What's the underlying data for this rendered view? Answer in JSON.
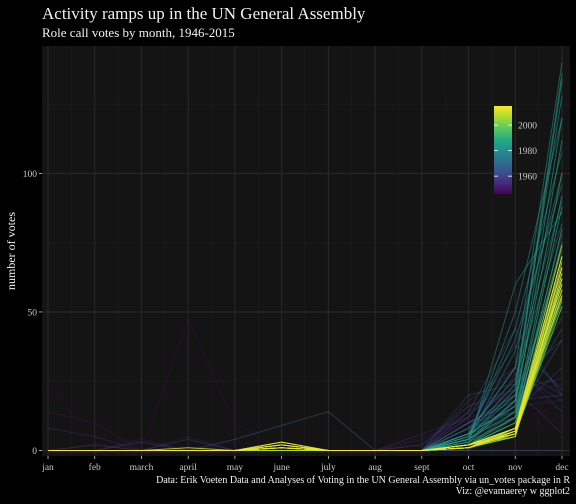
{
  "chart_data": {
    "type": "line",
    "title": "Activity ramps up in the UN General Assembly",
    "subtitle": "Role call votes by month, 1946-2015",
    "xlabel": "",
    "ylabel": "number of votes",
    "categories": [
      "jan",
      "feb",
      "march",
      "april",
      "may",
      "june",
      "july",
      "aug",
      "sept",
      "oct",
      "nov",
      "dec"
    ],
    "yticks": [
      0,
      50,
      100
    ],
    "ylim": [
      -2,
      146
    ],
    "grid": true,
    "legend": {
      "type": "colorbar",
      "position": "top-right",
      "palette": "viridis",
      "range": [
        1946,
        2015
      ],
      "ticks": [
        1960,
        1980,
        2000
      ]
    },
    "series": [
      {
        "year": 1946,
        "values": [
          24,
          3,
          0,
          0,
          0,
          0,
          0,
          0,
          0,
          6,
          10,
          8
        ]
      },
      {
        "year": 1947,
        "values": [
          0,
          0,
          0,
          0,
          3,
          0,
          0,
          0,
          0,
          8,
          22,
          6
        ]
      },
      {
        "year": 1948,
        "values": [
          0,
          0,
          0,
          0,
          0,
          0,
          0,
          0,
          5,
          10,
          18,
          12
        ]
      },
      {
        "year": 1949,
        "values": [
          0,
          0,
          0,
          47,
          10,
          0,
          0,
          0,
          0,
          14,
          20,
          9
        ]
      },
      {
        "year": 1950,
        "values": [
          0,
          0,
          0,
          0,
          0,
          0,
          0,
          0,
          0,
          10,
          25,
          14
        ]
      },
      {
        "year": 1951,
        "values": [
          14,
          10,
          0,
          0,
          0,
          0,
          0,
          0,
          0,
          0,
          18,
          20
        ]
      },
      {
        "year": 1952,
        "values": [
          0,
          0,
          4,
          0,
          0,
          0,
          0,
          0,
          0,
          16,
          20,
          24
        ]
      },
      {
        "year": 1953,
        "values": [
          0,
          2,
          0,
          5,
          0,
          0,
          0,
          0,
          4,
          12,
          16,
          18
        ]
      },
      {
        "year": 1954,
        "values": [
          0,
          0,
          0,
          0,
          0,
          0,
          0,
          0,
          2,
          14,
          22,
          6
        ]
      },
      {
        "year": 1955,
        "values": [
          0,
          0,
          0,
          0,
          0,
          0,
          0,
          0,
          0,
          10,
          18,
          20
        ]
      },
      {
        "year": 1956,
        "values": [
          8,
          5,
          0,
          0,
          0,
          0,
          0,
          0,
          0,
          0,
          28,
          18
        ]
      },
      {
        "year": 1957,
        "values": [
          0,
          2,
          0,
          0,
          0,
          0,
          0,
          0,
          6,
          12,
          30,
          14
        ]
      },
      {
        "year": 1958,
        "values": [
          0,
          0,
          0,
          0,
          0,
          0,
          0,
          0,
          2,
          16,
          22,
          26
        ]
      },
      {
        "year": 1959,
        "values": [
          0,
          0,
          0,
          0,
          0,
          0,
          0,
          0,
          0,
          18,
          30,
          20
        ]
      },
      {
        "year": 1960,
        "values": [
          0,
          0,
          0,
          4,
          0,
          0,
          0,
          0,
          0,
          10,
          14,
          30
        ]
      },
      {
        "year": 1961,
        "values": [
          0,
          0,
          3,
          0,
          0,
          0,
          0,
          0,
          0,
          20,
          24,
          40
        ]
      },
      {
        "year": 1962,
        "values": [
          0,
          0,
          0,
          0,
          0,
          2,
          0,
          0,
          0,
          12,
          38,
          22
        ]
      },
      {
        "year": 1963,
        "values": [
          0,
          0,
          0,
          0,
          0,
          0,
          0,
          0,
          0,
          14,
          44,
          20
        ]
      },
      {
        "year": 1964,
        "values": [
          0,
          0,
          0,
          0,
          0,
          0,
          0,
          0,
          0,
          0,
          0,
          0
        ]
      },
      {
        "year": 1965,
        "values": [
          0,
          0,
          0,
          0,
          0,
          0,
          0,
          0,
          0,
          8,
          20,
          52
        ]
      },
      {
        "year": 1966,
        "values": [
          0,
          0,
          0,
          0,
          0,
          0,
          0,
          0,
          0,
          10,
          18,
          48
        ]
      },
      {
        "year": 1967,
        "values": [
          0,
          0,
          0,
          0,
          4,
          9,
          14,
          0,
          0,
          0,
          12,
          40
        ]
      },
      {
        "year": 1968,
        "values": [
          0,
          0,
          0,
          0,
          0,
          0,
          0,
          0,
          0,
          6,
          16,
          44
        ]
      },
      {
        "year": 1969,
        "values": [
          0,
          0,
          0,
          0,
          0,
          0,
          0,
          0,
          0,
          8,
          14,
          56
        ]
      },
      {
        "year": 1970,
        "values": [
          0,
          0,
          0,
          0,
          0,
          0,
          0,
          0,
          0,
          6,
          12,
          60
        ]
      },
      {
        "year": 1971,
        "values": [
          0,
          0,
          0,
          0,
          0,
          0,
          0,
          0,
          0,
          10,
          20,
          66
        ]
      },
      {
        "year": 1972,
        "values": [
          0,
          0,
          0,
          0,
          0,
          0,
          0,
          0,
          0,
          4,
          16,
          72
        ]
      },
      {
        "year": 1973,
        "values": [
          0,
          0,
          0,
          0,
          0,
          0,
          0,
          0,
          0,
          2,
          14,
          78
        ]
      },
      {
        "year": 1974,
        "values": [
          0,
          0,
          0,
          0,
          0,
          0,
          0,
          0,
          0,
          8,
          26,
          82
        ]
      },
      {
        "year": 1975,
        "values": [
          0,
          0,
          0,
          0,
          0,
          0,
          0,
          0,
          0,
          6,
          30,
          90
        ]
      },
      {
        "year": 1976,
        "values": [
          0,
          0,
          0,
          0,
          0,
          0,
          0,
          0,
          0,
          4,
          36,
          100
        ]
      },
      {
        "year": 1977,
        "values": [
          0,
          0,
          0,
          0,
          0,
          0,
          0,
          0,
          0,
          6,
          40,
          96
        ]
      },
      {
        "year": 1978,
        "values": [
          0,
          0,
          0,
          0,
          0,
          0,
          0,
          0,
          0,
          5,
          44,
          108
        ]
      },
      {
        "year": 1979,
        "values": [
          0,
          0,
          0,
          0,
          0,
          0,
          0,
          0,
          0,
          2,
          60,
          86
        ]
      },
      {
        "year": 1980,
        "values": [
          0,
          0,
          0,
          0,
          0,
          0,
          0,
          0,
          0,
          4,
          50,
          120
        ]
      },
      {
        "year": 1981,
        "values": [
          0,
          0,
          0,
          0,
          0,
          0,
          0,
          0,
          0,
          6,
          30,
          140
        ]
      },
      {
        "year": 1982,
        "values": [
          0,
          0,
          0,
          0,
          0,
          0,
          0,
          0,
          0,
          5,
          20,
          134
        ]
      },
      {
        "year": 1983,
        "values": [
          0,
          0,
          0,
          0,
          0,
          0,
          0,
          0,
          0,
          6,
          24,
          128
        ]
      },
      {
        "year": 1984,
        "values": [
          0,
          0,
          0,
          0,
          0,
          0,
          0,
          0,
          0,
          5,
          22,
          136
        ]
      },
      {
        "year": 1985,
        "values": [
          0,
          0,
          0,
          0,
          0,
          0,
          0,
          0,
          0,
          4,
          18,
          120
        ]
      },
      {
        "year": 1986,
        "values": [
          0,
          0,
          0,
          0,
          0,
          0,
          0,
          0,
          0,
          6,
          16,
          112
        ]
      },
      {
        "year": 1987,
        "values": [
          0,
          0,
          0,
          0,
          0,
          0,
          0,
          0,
          0,
          3,
          18,
          100
        ]
      },
      {
        "year": 1988,
        "values": [
          0,
          0,
          0,
          0,
          0,
          0,
          0,
          0,
          0,
          4,
          14,
          92
        ]
      },
      {
        "year": 1989,
        "values": [
          0,
          0,
          0,
          0,
          0,
          0,
          0,
          0,
          0,
          3,
          12,
          88
        ]
      },
      {
        "year": 1990,
        "values": [
          0,
          0,
          0,
          0,
          0,
          0,
          0,
          0,
          0,
          2,
          10,
          80
        ]
      },
      {
        "year": 1991,
        "values": [
          0,
          0,
          0,
          0,
          0,
          0,
          0,
          0,
          0,
          2,
          12,
          75
        ]
      },
      {
        "year": 1992,
        "values": [
          0,
          0,
          0,
          0,
          0,
          0,
          0,
          0,
          0,
          1,
          8,
          70
        ]
      },
      {
        "year": 1993,
        "values": [
          0,
          0,
          0,
          0,
          0,
          0,
          0,
          0,
          0,
          2,
          10,
          66
        ]
      },
      {
        "year": 1994,
        "values": [
          0,
          0,
          0,
          0,
          0,
          0,
          0,
          0,
          0,
          1,
          6,
          60
        ]
      },
      {
        "year": 1995,
        "values": [
          0,
          0,
          0,
          0,
          0,
          0,
          0,
          0,
          0,
          2,
          8,
          62
        ]
      },
      {
        "year": 1996,
        "values": [
          0,
          0,
          0,
          0,
          0,
          0,
          0,
          0,
          0,
          1,
          6,
          58
        ]
      },
      {
        "year": 1997,
        "values": [
          0,
          0,
          0,
          0,
          0,
          1,
          0,
          0,
          0,
          2,
          7,
          56
        ]
      },
      {
        "year": 1998,
        "values": [
          0,
          0,
          0,
          0,
          0,
          2,
          0,
          0,
          0,
          1,
          6,
          54
        ]
      },
      {
        "year": 1999,
        "values": [
          0,
          0,
          0,
          0,
          0,
          0,
          0,
          0,
          0,
          2,
          8,
          60
        ]
      },
      {
        "year": 2000,
        "values": [
          0,
          0,
          0,
          0,
          0,
          0,
          0,
          0,
          0,
          1,
          5,
          64
        ]
      },
      {
        "year": 2001,
        "values": [
          0,
          0,
          0,
          0,
          0,
          1,
          0,
          0,
          0,
          2,
          7,
          58
        ]
      },
      {
        "year": 2002,
        "values": [
          0,
          0,
          0,
          0,
          0,
          0,
          0,
          0,
          0,
          1,
          6,
          52
        ]
      },
      {
        "year": 2003,
        "values": [
          0,
          0,
          0,
          0,
          0,
          0,
          0,
          0,
          0,
          2,
          8,
          55
        ]
      },
      {
        "year": 2004,
        "values": [
          0,
          0,
          0,
          0,
          0,
          2,
          0,
          0,
          0,
          1,
          5,
          62
        ]
      },
      {
        "year": 2005,
        "values": [
          0,
          0,
          0,
          0,
          0,
          1,
          0,
          0,
          0,
          2,
          6,
          68
        ]
      },
      {
        "year": 2006,
        "values": [
          0,
          0,
          0,
          0,
          0,
          3,
          0,
          0,
          0,
          1,
          7,
          70
        ]
      },
      {
        "year": 2007,
        "values": [
          0,
          0,
          0,
          0,
          0,
          0,
          0,
          0,
          0,
          2,
          8,
          74
        ]
      },
      {
        "year": 2008,
        "values": [
          0,
          0,
          0,
          0,
          0,
          1,
          0,
          0,
          0,
          1,
          6,
          66
        ]
      },
      {
        "year": 2009,
        "values": [
          0,
          0,
          0,
          0,
          0,
          2,
          0,
          0,
          0,
          2,
          5,
          64
        ]
      },
      {
        "year": 2010,
        "values": [
          0,
          0,
          0,
          0,
          0,
          1,
          0,
          0,
          0,
          1,
          7,
          58
        ]
      },
      {
        "year": 2011,
        "values": [
          0,
          0,
          0,
          1,
          0,
          2,
          0,
          0,
          0,
          2,
          6,
          56
        ]
      },
      {
        "year": 2012,
        "values": [
          0,
          0,
          0,
          0,
          0,
          1,
          0,
          0,
          0,
          1,
          8,
          60
        ]
      },
      {
        "year": 2013,
        "values": [
          0,
          0,
          0,
          0,
          0,
          2,
          0,
          0,
          0,
          2,
          6,
          62
        ]
      },
      {
        "year": 2014,
        "values": [
          0,
          0,
          0,
          0,
          0,
          1,
          0,
          0,
          0,
          1,
          7,
          66
        ]
      },
      {
        "year": 2015,
        "values": [
          0,
          0,
          0,
          0,
          0,
          3,
          0,
          0,
          0,
          2,
          8,
          70
        ]
      }
    ]
  },
  "caption": {
    "line1": "Data: Erik Voeten Data and Analyses of Voting in the UN General Assembly via un_votes package in R",
    "line2": "Viz: @evamaerey w ggplot2"
  },
  "colors": {
    "background": "#000000",
    "panel": "#141414",
    "grid_major": "#2a2a2a",
    "grid_minor": "#1e1e1e",
    "text": "#f2f2f2",
    "axis_text": "#c8c8c8"
  }
}
